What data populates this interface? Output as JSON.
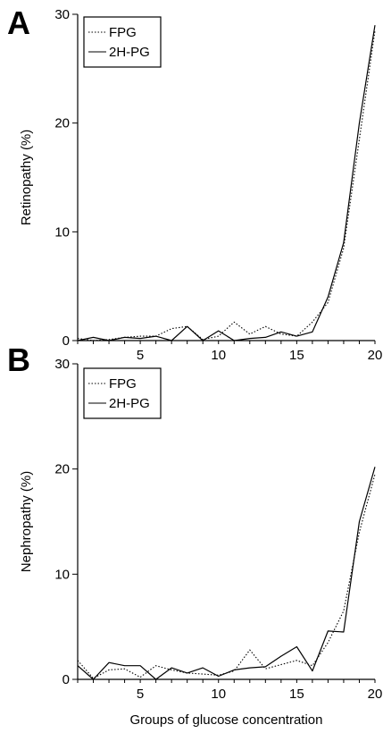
{
  "chart_data": [
    {
      "panel": "A",
      "type": "line",
      "title": "",
      "xlabel": "",
      "ylabel": "Retinopathy (%)",
      "xlim": [
        1,
        20
      ],
      "ylim": [
        0,
        30
      ],
      "x_ticks": [
        5,
        10,
        15,
        20
      ],
      "y_ticks": [
        0,
        10,
        20,
        30
      ],
      "legend_position": "top-left",
      "x": [
        1,
        2,
        3,
        4,
        5,
        6,
        7,
        8,
        9,
        10,
        11,
        12,
        13,
        14,
        15,
        16,
        17,
        18,
        19,
        20
      ],
      "series": [
        {
          "name": "FPG",
          "style": "dotted",
          "values": [
            0.2,
            0.0,
            0.1,
            0.3,
            0.4,
            0.4,
            1.1,
            1.3,
            0.1,
            0.4,
            1.7,
            0.6,
            1.3,
            0.6,
            0.4,
            1.7,
            3.5,
            8.5,
            18.5,
            28.5
          ]
        },
        {
          "name": "2H-PG",
          "style": "solid",
          "values": [
            0.0,
            0.3,
            0.0,
            0.3,
            0.2,
            0.4,
            0.0,
            1.3,
            0.0,
            0.9,
            0.0,
            0.2,
            0.3,
            0.8,
            0.4,
            0.8,
            4.0,
            9.0,
            20.0,
            29.0
          ]
        }
      ]
    },
    {
      "panel": "B",
      "type": "line",
      "title": "",
      "xlabel": "Groups of glucose concentration",
      "ylabel": "Nephropathy (%)",
      "xlim": [
        1,
        20
      ],
      "ylim": [
        0,
        30
      ],
      "x_ticks": [
        5,
        10,
        15,
        20
      ],
      "y_ticks": [
        0,
        10,
        20,
        30
      ],
      "legend_position": "top-left",
      "x": [
        1,
        2,
        3,
        4,
        5,
        6,
        7,
        8,
        9,
        10,
        11,
        12,
        13,
        14,
        15,
        16,
        17,
        18,
        19,
        20
      ],
      "series": [
        {
          "name": "FPG",
          "style": "dotted",
          "values": [
            1.8,
            0.1,
            0.9,
            1.0,
            0.2,
            1.3,
            0.9,
            0.6,
            0.5,
            0.4,
            0.8,
            2.8,
            1.0,
            1.4,
            1.8,
            1.3,
            3.5,
            6.5,
            14.0,
            19.5
          ]
        },
        {
          "name": "2H-PG",
          "style": "solid",
          "values": [
            1.3,
            0.0,
            1.6,
            1.3,
            1.3,
            0.0,
            1.1,
            0.6,
            1.1,
            0.3,
            0.9,
            1.1,
            1.2,
            2.2,
            3.1,
            0.8,
            4.6,
            4.5,
            15.0,
            20.2
          ]
        }
      ]
    }
  ],
  "colors": {
    "line": "#000000",
    "axis": "#000000",
    "background": "#ffffff"
  }
}
